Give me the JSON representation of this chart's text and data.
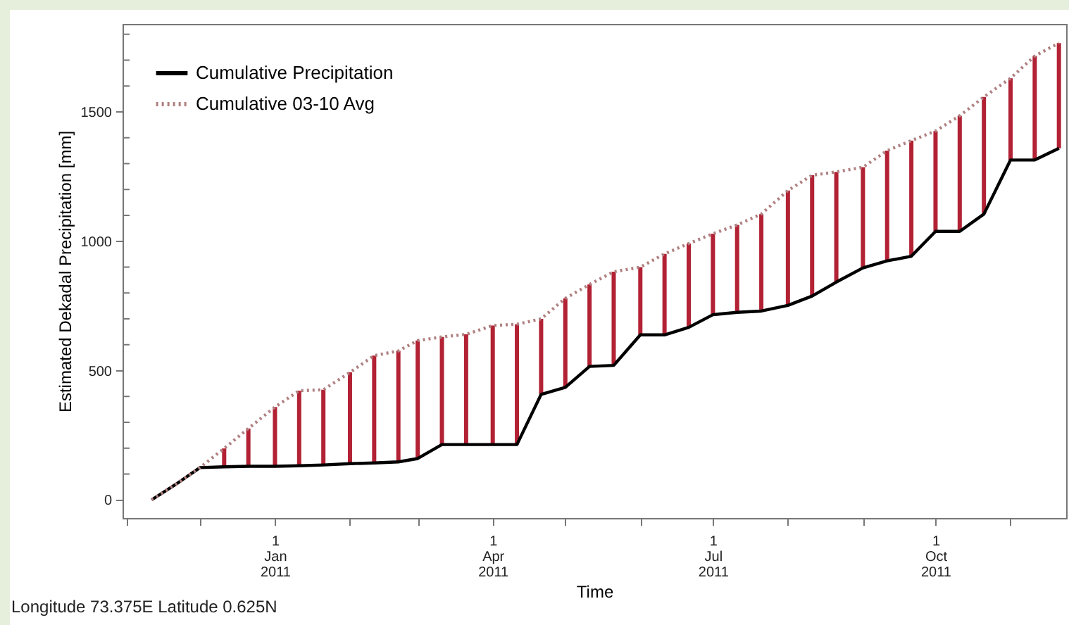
{
  "chart_data": {
    "type": "line",
    "xlabel": "Time",
    "ylabel": "Estimated Dekadal Precipitation [mm]",
    "annotations": [
      "Longitude 73.375E Latitude 0.625N"
    ],
    "x": [
      "2010-11-11",
      "2010-11-21",
      "2010-12-01",
      "2010-12-11",
      "2010-12-21",
      "2011-01-01",
      "2011-01-11",
      "2011-01-21",
      "2011-02-01",
      "2011-02-11",
      "2011-02-21",
      "2011-03-01",
      "2011-03-11",
      "2011-03-21",
      "2011-04-01",
      "2011-04-11",
      "2011-04-21",
      "2011-05-01",
      "2011-05-11",
      "2011-05-21",
      "2011-06-01",
      "2011-06-11",
      "2011-06-21",
      "2011-07-01",
      "2011-07-11",
      "2011-07-21",
      "2011-08-01",
      "2011-08-11",
      "2011-08-21",
      "2011-09-01",
      "2011-09-11",
      "2011-09-21",
      "2011-10-01",
      "2011-10-11",
      "2011-10-21",
      "2011-11-01",
      "2011-11-11",
      "2011-11-21"
    ],
    "series": [
      {
        "type": "bar",
        "color": "#b22234",
        "base": [
          null,
          null,
          null,
          128,
          130,
          130,
          132,
          135,
          140,
          143,
          147,
          160,
          214,
          214,
          214,
          214,
          408,
          435,
          516,
          520,
          638,
          638,
          667,
          716,
          725,
          730,
          752,
          788,
          842,
          897,
          924,
          942,
          1038,
          1038,
          1105,
          1314,
          1314,
          1359
        ],
        "values": [
          null,
          null,
          null,
          71,
          146,
          229,
          290,
          291,
          353,
          415,
          429,
          456,
          416,
          426,
          460,
          465,
          292,
          344,
          317,
          362,
          262,
          313,
          324,
          313,
          338,
          375,
          444,
          467,
          426,
          389,
          426,
          447,
          388,
          447,
          453,
          316,
          402,
          407
        ]
      },
      {
        "name": "Cumulative Precipitation",
        "color": "#000000",
        "line_style": "solid",
        "values": [
          0,
          60,
          125,
          128,
          130,
          130,
          132,
          135,
          140,
          143,
          147,
          160,
          214,
          214,
          214,
          214,
          408,
          435,
          516,
          520,
          638,
          638,
          667,
          716,
          725,
          730,
          752,
          788,
          842,
          897,
          924,
          942,
          1038,
          1038,
          1105,
          1314,
          1314,
          1359
        ]
      },
      {
        "name": "Cumulative 03-10 Avg",
        "color": "#b08080",
        "line_style": "dotted",
        "values": [
          0,
          60,
          125,
          199,
          276,
          359,
          422,
          426,
          493,
          558,
          576,
          616,
          630,
          640,
          674,
          679,
          700,
          779,
          833,
          882,
          900,
          951,
          991,
          1029,
          1063,
          1105,
          1196,
          1255,
          1268,
          1286,
          1350,
          1389,
          1426,
          1485,
          1558,
          1630,
          1716,
          1766
        ]
      }
    ],
    "xlim": [
      "2010-10-30",
      "2011-11-24"
    ],
    "xticks": [
      {
        "value": "2010-11-01",
        "label": null
      },
      {
        "value": "2010-12-01",
        "label": null
      },
      {
        "value": "2011-01-01",
        "label": "1\nJan\n2011"
      },
      {
        "value": "2011-02-01",
        "label": null
      },
      {
        "value": "2011-03-01",
        "label": null
      },
      {
        "value": "2011-04-01",
        "label": "1\nApr\n2011"
      },
      {
        "value": "2011-05-01",
        "label": null
      },
      {
        "value": "2011-06-01",
        "label": null
      },
      {
        "value": "2011-07-01",
        "label": "1\nJul\n2011"
      },
      {
        "value": "2011-08-01",
        "label": null
      },
      {
        "value": "2011-09-01",
        "label": null
      },
      {
        "value": "2011-10-01",
        "label": "1\nOct\n2011"
      },
      {
        "value": "2011-11-01",
        "label": null
      }
    ],
    "ylim": [
      -70,
      1840
    ],
    "yticks": [
      0,
      {
        "value": 100,
        "label": null
      },
      {
        "value": 200,
        "label": null
      },
      {
        "value": 300,
        "label": null
      },
      {
        "value": 400,
        "label": null
      },
      500,
      {
        "value": 600,
        "label": null
      },
      {
        "value": 700,
        "label": null
      },
      {
        "value": 800,
        "label": null
      },
      {
        "value": 900,
        "label": null
      },
      1000,
      {
        "value": 1100,
        "label": null
      },
      {
        "value": 1200,
        "label": null
      },
      {
        "value": 1300,
        "label": null
      },
      {
        "value": 1400,
        "label": null
      },
      1500,
      {
        "value": 1600,
        "label": null
      },
      {
        "value": 1700,
        "label": null
      },
      {
        "value": 1800,
        "label": null
      }
    ],
    "grid": false,
    "legend": "top left"
  }
}
